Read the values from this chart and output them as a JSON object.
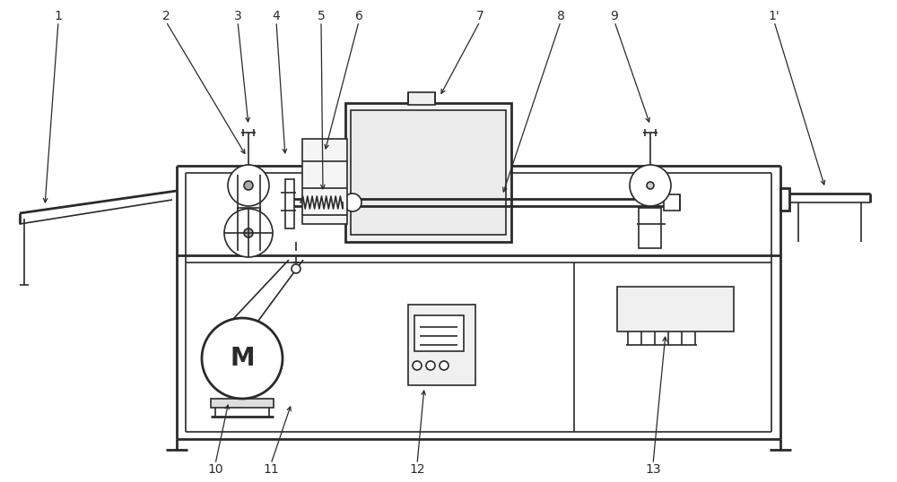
{
  "bg_color": "#ffffff",
  "line_color": "#2a2a2a",
  "lw": 1.2,
  "tlw": 2.0,
  "fig_width": 10.0,
  "fig_height": 5.38
}
